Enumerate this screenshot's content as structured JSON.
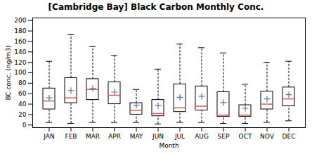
{
  "chart_data": {
    "type": "box",
    "title": "[Cambridge Bay] Black Carbon Monthly Conc.",
    "xlabel": "Month",
    "ylabel": "BC conc. (ng/m3)",
    "categories": [
      "JAN",
      "FEB",
      "MAR",
      "APR",
      "MAY",
      "JUN",
      "JUL",
      "AUG",
      "SEP",
      "OCT",
      "NOV",
      "DEC"
    ],
    "whislo": [
      5,
      3,
      5,
      5,
      5,
      2,
      5,
      5,
      3,
      3,
      5,
      8
    ],
    "q1": [
      30,
      42,
      48,
      40,
      20,
      17,
      25,
      28,
      16,
      16,
      30,
      36
    ],
    "med": [
      46,
      52,
      68,
      57,
      28,
      22,
      33,
      36,
      19,
      19,
      40,
      50
    ],
    "q3": [
      70,
      90,
      88,
      82,
      42,
      48,
      78,
      74,
      63,
      38,
      64,
      72
    ],
    "whishi": [
      122,
      173,
      150,
      133,
      68,
      107,
      155,
      148,
      138,
      78,
      120,
      122
    ],
    "mean": [
      52,
      66,
      70,
      63,
      38,
      37,
      53,
      55,
      43,
      32,
      50,
      58
    ],
    "ylim": [
      -5,
      205
    ],
    "yticks": [
      0,
      20,
      40,
      60,
      80,
      100,
      120,
      140,
      160,
      180,
      200
    ],
    "grid": false,
    "marker": "plus",
    "line_style": "dashed"
  }
}
